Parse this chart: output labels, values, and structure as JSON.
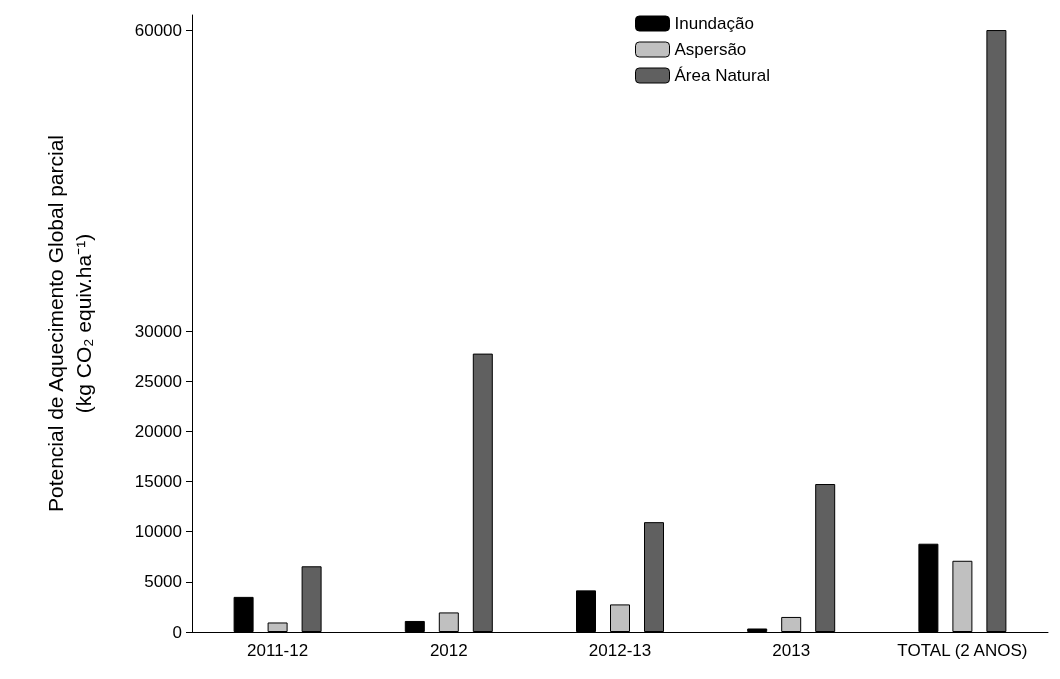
{
  "chart_data": {
    "type": "bar",
    "ylabel": "Potencial de Aquecimento Global parcial\n(kg CO₂ equiv.ha⁻¹)",
    "categories": [
      "2011-12",
      "2012",
      "2012-13",
      "2013",
      "TOTAL (2 ANOS)"
    ],
    "series": [
      {
        "name": "Inundação",
        "color": "#000000",
        "values": [
          3500,
          1100,
          4150,
          350,
          8800
        ]
      },
      {
        "name": "Aspersão",
        "color": "#c0c0c0",
        "values": [
          950,
          1950,
          2750,
          1500,
          7100
        ]
      },
      {
        "name": "Área Natural",
        "color": "#606060",
        "values": [
          6550,
          27750,
          10950,
          14750,
          60000
        ]
      }
    ],
    "ylim": [
      0,
      61500
    ],
    "yticks": [
      0,
      5000,
      10000,
      15000,
      20000,
      25000,
      30000,
      60000
    ],
    "grid": false,
    "legend": "top"
  }
}
